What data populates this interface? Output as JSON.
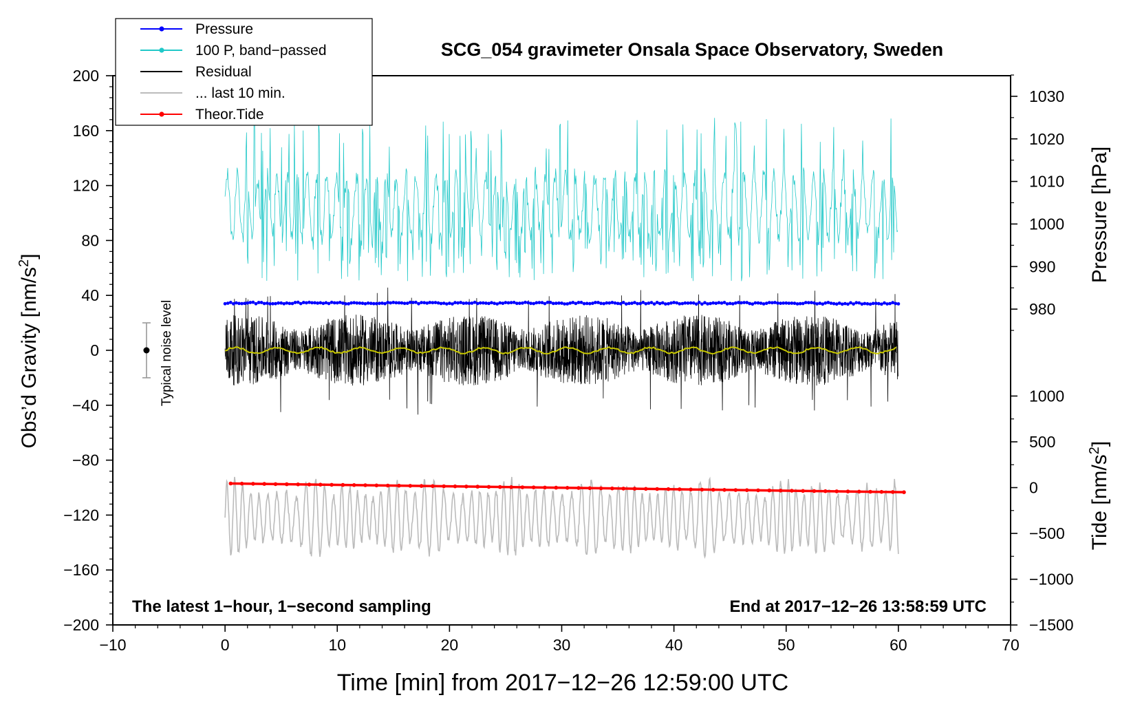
{
  "chart_data": {
    "type": "line",
    "title": "SCG_054 gravimeter Onsala Space Observatory, Sweden",
    "xlabel": "Time [min] from 2017−12−26 12:59:00 UTC",
    "ylabel_left_main": "Obs’d Gravity [nm/s",
    "ylabel_left_sup": "2",
    "ylabel_left_close": "]",
    "ylabel_right_top": "Pressure [hPa]",
    "ylabel_right_bottom_main": "Tide [nm/s",
    "ylabel_right_bottom_sup": "2",
    "ylabel_right_bottom_close": "]",
    "xlim": [
      -10,
      70
    ],
    "ylim_left": [
      -200,
      200
    ],
    "x_ticks": [
      -10,
      0,
      10,
      20,
      30,
      40,
      50,
      60,
      70
    ],
    "x_tick_labels": [
      "−10",
      "0",
      "10",
      "20",
      "30",
      "40",
      "50",
      "60",
      "70"
    ],
    "y_left_ticks": [
      200,
      160,
      120,
      80,
      40,
      0,
      -40,
      -80,
      -120,
      -160,
      -200
    ],
    "y_left_tick_labels": [
      "200",
      "160",
      "120",
      "80",
      "40",
      "0",
      "−40",
      "−80",
      "−120",
      "−160",
      "−200"
    ],
    "pressure_axis": {
      "ticks": [
        980,
        990,
        1000,
        1010,
        1020,
        1030
      ],
      "tick_labels": [
        "980",
        "990",
        "1000",
        "1010",
        "1020",
        "1030"
      ],
      "left_value_at_980": 30,
      "left_units_per_hPa": 3.1,
      "minor_step": 5
    },
    "tide_axis": {
      "ticks": [
        1000,
        500,
        0,
        -500,
        -1000,
        -1500
      ],
      "tick_labels": [
        "1000",
        "500",
        "0",
        "−500",
        "−1000",
        "−1500"
      ],
      "left_value_at_0": -100,
      "left_units_per_nm": 0.0667,
      "minor_step": 250
    },
    "legend": {
      "position": "top-left",
      "entries": [
        {
          "label": "Pressure",
          "color": "#0000ff",
          "marker": "dot"
        },
        {
          "label": "100 P, band−passed",
          "color": "#20c8c8",
          "marker": "dot"
        },
        {
          "label": "Residual",
          "color": "#000000",
          "marker": "none"
        },
        {
          "label": "... last 10 min.",
          "color": "#bbbbbb",
          "marker": "none"
        },
        {
          "label": "Theor.Tide",
          "color": "#ff0000",
          "marker": "dot"
        }
      ]
    },
    "series": [
      {
        "name": "Pressure",
        "color": "#0000ff",
        "axis": "pressure",
        "x_range": [
          0,
          60
        ],
        "approx_hPa_start": 981.5,
        "approx_hPa_end": 981.2,
        "level_left_units": 34.5
      },
      {
        "name": "100 P, band−passed",
        "color": "#20c8c8",
        "axis": "left",
        "x_range": [
          0,
          60
        ],
        "mean": 105,
        "typical_min": 50,
        "typical_max": 165,
        "peak_max": 180
      },
      {
        "name": "Residual",
        "color": "#000000",
        "axis": "left",
        "x_range": [
          0,
          60
        ],
        "mean": 0,
        "typical_min": -35,
        "typical_max": 35,
        "peak_min": -48,
        "peak_max": 55
      },
      {
        "name": "Residual smoothed",
        "color": "#c8c800",
        "axis": "left",
        "x_range": [
          0,
          60
        ],
        "mean": 0,
        "amplitude": 2
      },
      {
        "name": "... last 10 min.",
        "color": "#bbbbbb",
        "axis": "left",
        "x_range": [
          0,
          60
        ],
        "mean": -122,
        "typical_min": -155,
        "typical_max": -90
      },
      {
        "name": "Theor.Tide",
        "color": "#ff0000",
        "axis": "tide",
        "x": [
          0.5,
          60.5
        ],
        "values": [
          45,
          -50
        ]
      }
    ],
    "noise_bar": {
      "label": "Typical noise level",
      "x": -7,
      "center": 0,
      "low": -20,
      "high": 20
    },
    "annotations": {
      "bottom_left": "The latest 1−hour, 1−second sampling",
      "bottom_right": "End at 2017−12−26 13:58:59 UTC"
    }
  }
}
